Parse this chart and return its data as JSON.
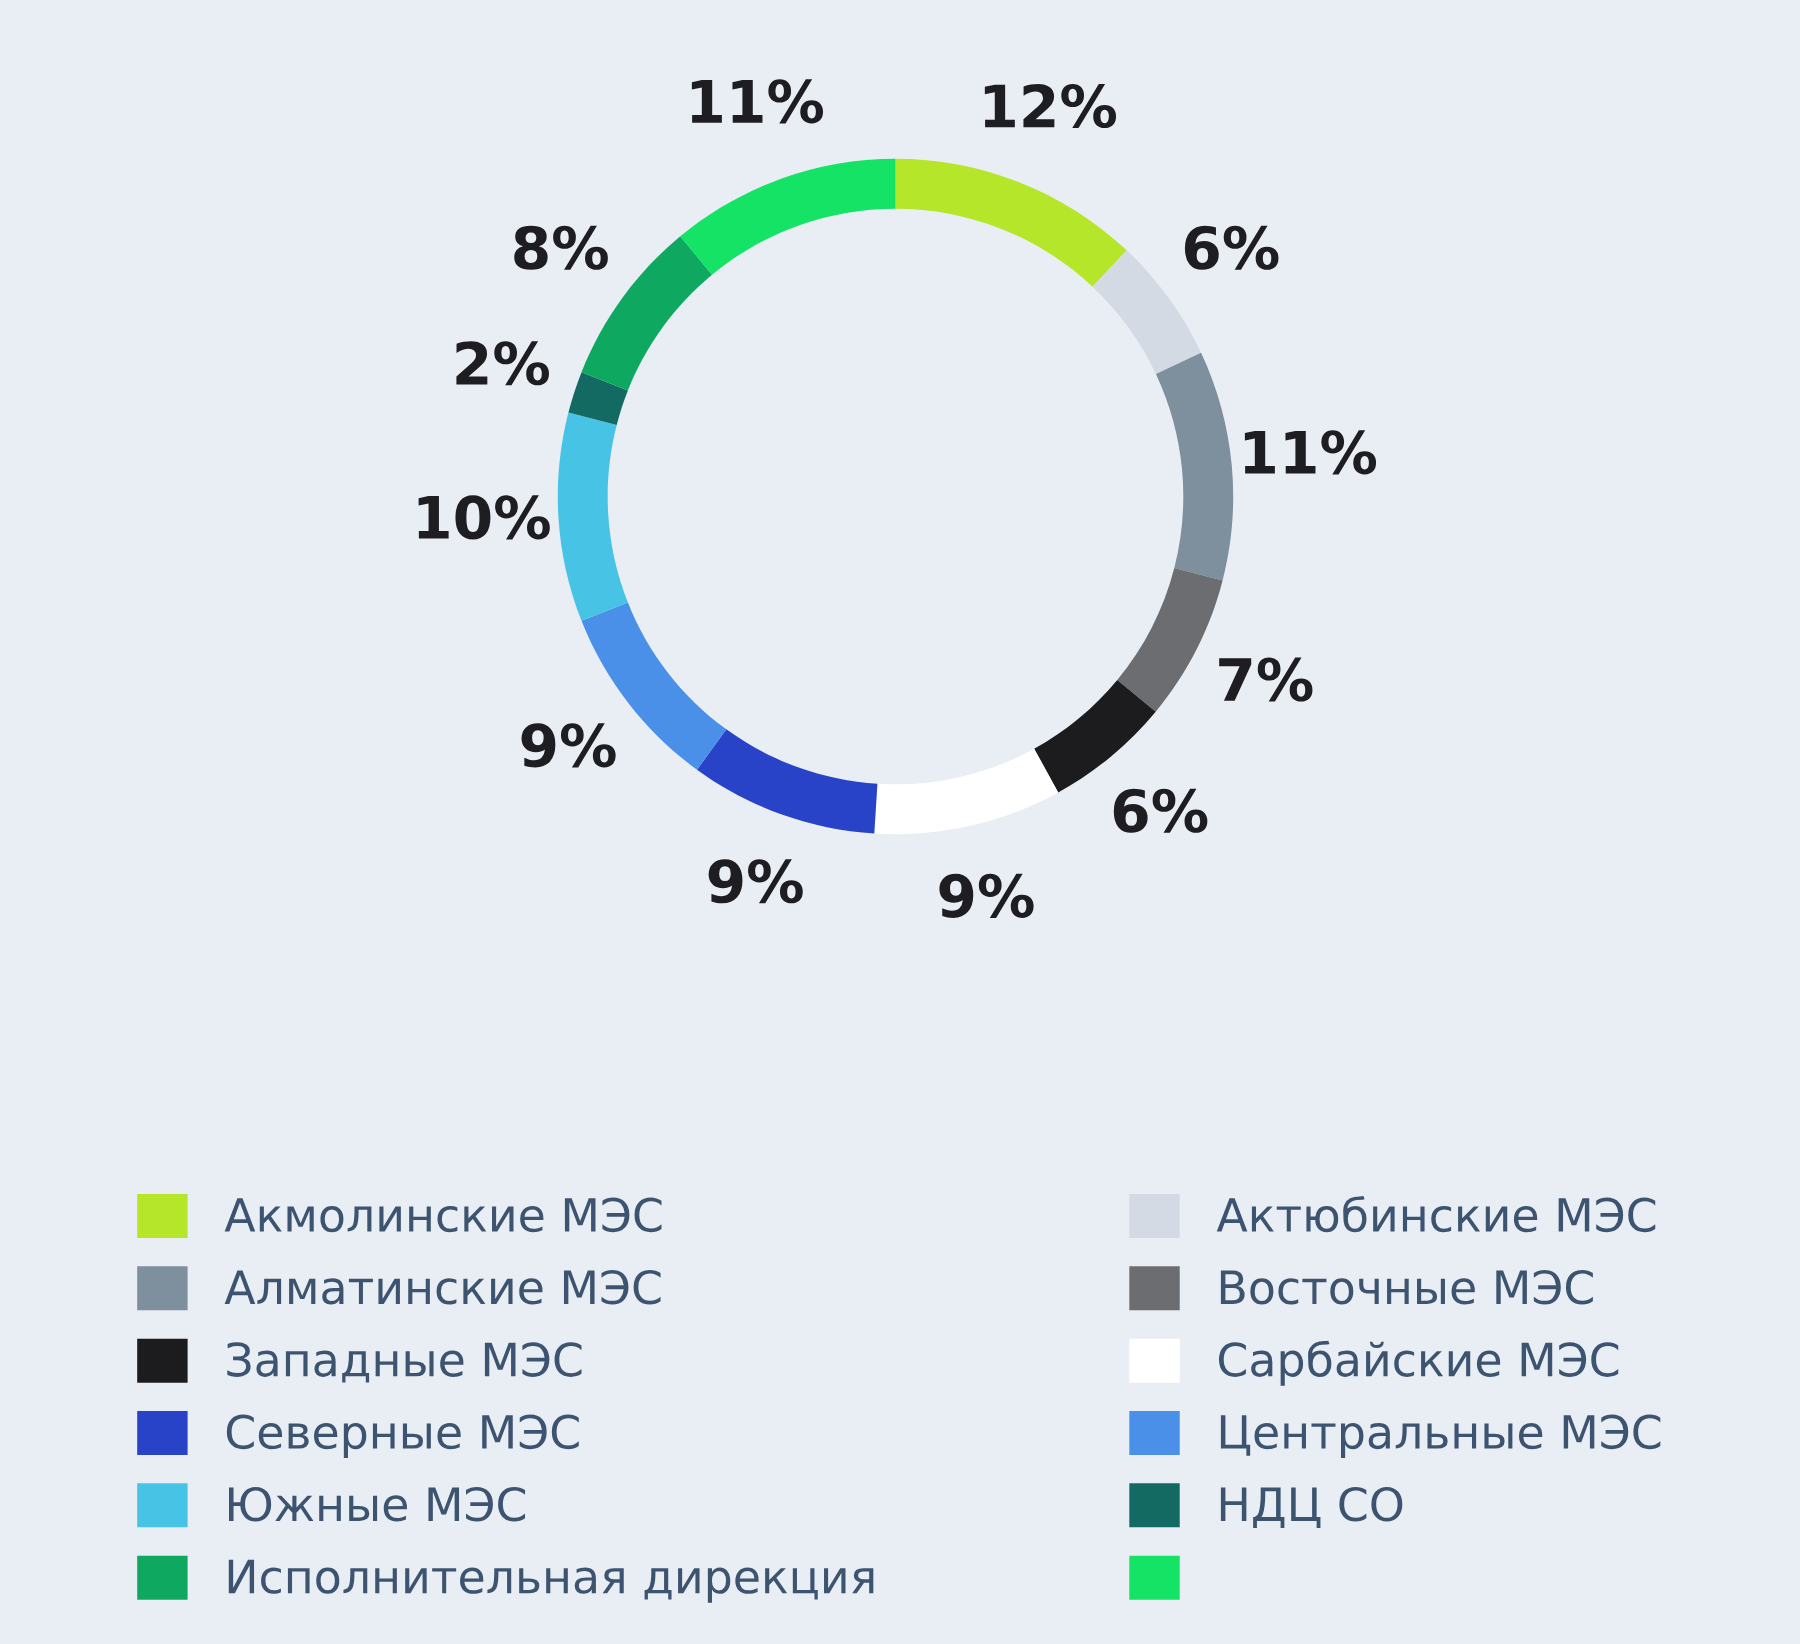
{
  "chart_data": {
    "type": "donut",
    "categories": [
      "Акмолинские МЭС",
      "Актюбинские МЭС",
      "Алматинские МЭС",
      "Восточные МЭС",
      "Западные МЭС",
      "Сарбайские МЭС",
      "Северные МЭС",
      "Центральные МЭС",
      "Южные МЭС",
      "НДЦ СО",
      "Исполнительная дирекция",
      null
    ],
    "values": [
      12,
      6,
      11,
      7,
      6,
      9,
      9,
      9,
      10,
      2,
      8,
      11
    ],
    "value_labels": [
      "12%",
      "6%",
      "11%",
      "7%",
      "6%",
      "9%",
      "9%",
      "9%",
      "10%",
      "2%",
      "8%",
      "11%"
    ],
    "colors": [
      "#b5e62a",
      "#d3dae3",
      "#7e8f9e",
      "#6b6d70",
      "#1c1c1e",
      "#ffffff",
      "#2843c8",
      "#4a8fe8",
      "#47c3e6",
      "#136a63",
      "#0fa860",
      "#14e366"
    ],
    "legend": "bottom"
  }
}
